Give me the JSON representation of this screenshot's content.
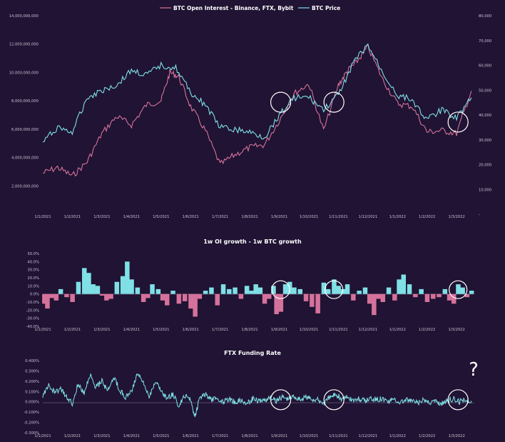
{
  "colors": {
    "background": "#201333",
    "oi": "#d5729b",
    "price": "#7fe0e6",
    "positive": "#7fe0e6",
    "negative": "#d5729b",
    "funding": "#7fe0e6",
    "circle": "#ffffff"
  },
  "annotation_mark": "?",
  "chart_data": [
    {
      "type": "line",
      "legend": [
        "BTC Open Interest - Binance, FTX, Bybit",
        "BTC Price"
      ],
      "legend_position": "top-center",
      "x_ticks": [
        "1/1/2021",
        "1/2/2021",
        "1/3/2021",
        "1/4/2021",
        "1/5/2021",
        "1/6/2021",
        "1/7/2021",
        "1/8/2021",
        "1/9/2021",
        "1/10/2021",
        "1/11/2021",
        "1/12/2021",
        "1/1/2022",
        "1/2/2022",
        "1/3/2022"
      ],
      "y_ticks": [
        "14,000,000,000",
        "12,000,000,000",
        "10,000,000,000",
        "8,000,000,000",
        "6,000,000,000",
        "4,000,000,000",
        "2,000,000,000"
      ],
      "y_tick_values": [
        14000000000,
        12000000000,
        10000000000,
        8000000000,
        6000000000,
        4000000000,
        2000000000
      ],
      "ylim": [
        0,
        14000000000
      ],
      "y2_ticks": [
        "80,000",
        "70,000",
        "60,000",
        "50,000",
        "40,000",
        "30,000",
        "20,000",
        "10,000",
        "-"
      ],
      "y2_tick_values": [
        80000,
        70000,
        60000,
        50000,
        40000,
        30000,
        20000,
        10000,
        0
      ],
      "y2lim": [
        0,
        80000
      ],
      "series": [
        {
          "name": "BTC Open Interest - Binance, FTX, Bybit",
          "axis": "left",
          "x": [
            0,
            0.5,
            1,
            1.5,
            2,
            2.5,
            3,
            3.5,
            4,
            4.3,
            4.6,
            5,
            5.5,
            6,
            6.5,
            7,
            7.5,
            8,
            8.5,
            9,
            9.5,
            10,
            10.3,
            10.6,
            11,
            11.5,
            12,
            12.5,
            13,
            13.5,
            14,
            14.5
          ],
          "values": [
            2900000000,
            3300000000,
            2700000000,
            3700000000,
            5700000000,
            6900000000,
            6300000000,
            7700000000,
            8000000000,
            10000000000,
            9700000000,
            7600000000,
            5900000000,
            3500000000,
            4200000000,
            4700000000,
            4900000000,
            6600000000,
            8500000000,
            9200000000,
            5900000000,
            9100000000,
            10100000000,
            10700000000,
            11800000000,
            9500000000,
            7800000000,
            7600000000,
            5800000000,
            5900000000,
            5700000000,
            8700000000
          ]
        },
        {
          "name": "BTC Price",
          "axis": "right",
          "x": [
            0,
            0.5,
            1,
            1.5,
            2,
            2.5,
            3,
            3.5,
            4,
            4.5,
            5,
            5.5,
            6,
            6.5,
            7,
            7.5,
            8,
            8.5,
            9,
            9.5,
            10,
            10.5,
            11,
            11.5,
            12,
            12.5,
            13,
            13.5,
            14,
            14.5
          ],
          "values": [
            29000,
            35000,
            33000,
            47000,
            50000,
            52000,
            58000,
            56000,
            60000,
            59000,
            49000,
            44000,
            35000,
            34000,
            33000,
            31000,
            40000,
            47000,
            47000,
            42000,
            48000,
            61000,
            68000,
            57000,
            48000,
            46000,
            38000,
            42000,
            39000,
            47000
          ]
        }
      ],
      "annotations": [
        {
          "type": "circle",
          "x": 8.05,
          "y": 8000000000
        },
        {
          "type": "circle",
          "x": 9.85,
          "y": 8000000000
        },
        {
          "type": "circle",
          "x": 14.05,
          "y": 6600000000
        }
      ]
    },
    {
      "type": "bar",
      "title": "1w OI growth - 1w BTC growth",
      "x_ticks": [
        "1/1/2021",
        "1/2/2021",
        "1/3/2021",
        "1/4/2021",
        "1/5/2021",
        "1/6/2021",
        "1/7/2021",
        "1/8/2021",
        "1/9/2021",
        "1/10/2021",
        "1/11/2021",
        "1/12/2021",
        "1/1/2022",
        "1/2/2022",
        "1/3/2022"
      ],
      "y_ticks": [
        "50.0%",
        "40.0%",
        "30.0%",
        "20.0%",
        "10.0%",
        "0.0%",
        "-10.0%",
        "-20.0%",
        "-30.0%",
        "-40.0%"
      ],
      "y_tick_values": [
        50,
        40,
        30,
        20,
        10,
        0,
        -10,
        -20,
        -30,
        -40
      ],
      "ylim": [
        -40,
        50
      ],
      "x": [
        0.05,
        0.15,
        0.3,
        0.45,
        0.6,
        0.8,
        1.0,
        1.2,
        1.4,
        1.55,
        1.7,
        1.85,
        2.0,
        2.15,
        2.3,
        2.5,
        2.7,
        2.85,
        3.0,
        3.2,
        3.4,
        3.55,
        3.7,
        3.9,
        4.05,
        4.2,
        4.4,
        4.6,
        4.8,
        5.0,
        5.15,
        5.3,
        5.5,
        5.7,
        5.9,
        6.1,
        6.3,
        6.5,
        6.7,
        6.9,
        7.05,
        7.2,
        7.35,
        7.5,
        7.65,
        7.8,
        7.9,
        8.05,
        8.2,
        8.35,
        8.5,
        8.7,
        8.9,
        9.1,
        9.3,
        9.5,
        9.65,
        9.85,
        10.0,
        10.15,
        10.3,
        10.5,
        10.7,
        10.9,
        11.05,
        11.2,
        11.35,
        11.5,
        11.7,
        11.9,
        12.05,
        12.2,
        12.4,
        12.6,
        12.8,
        13.0,
        13.2,
        13.4,
        13.6,
        13.75,
        13.9,
        14.05,
        14.2,
        14.35,
        14.5
      ],
      "values": [
        -12,
        -18,
        -5,
        -8,
        6,
        -4,
        -10,
        15,
        32,
        26,
        12,
        10,
        -2,
        -8,
        -6,
        15,
        22,
        40,
        18,
        8,
        -10,
        -5,
        12,
        6,
        -8,
        -14,
        4,
        -12,
        -9,
        -18,
        -28,
        -6,
        4,
        8,
        -14,
        12,
        6,
        8,
        -6,
        10,
        4,
        12,
        8,
        -12,
        -6,
        10,
        -25,
        -22,
        12,
        15,
        8,
        6,
        -9,
        -16,
        -24,
        14,
        6,
        18,
        10,
        6,
        12,
        -8,
        4,
        8,
        -12,
        -26,
        -6,
        -10,
        8,
        -8,
        18,
        24,
        12,
        -4,
        6,
        -10,
        -6,
        -4,
        6,
        -8,
        -12,
        12,
        8,
        -4,
        4
      ]
    },
    {
      "type": "line",
      "title": "FTX Funding Rate",
      "x_ticks": [
        "1/1/2021",
        "1/2/2021",
        "1/3/2021",
        "1/4/2021",
        "1/5/2021",
        "1/6/2021",
        "1/7/2021",
        "1/8/2021",
        "1/9/2021",
        "1/10/2021",
        "1/11/2021",
        "1/12/2021",
        "1/1/2022",
        "1/2/2022",
        "1/3/2022"
      ],
      "y_ticks": [
        "0.400%",
        "0.300%",
        "0.200%",
        "0.100%",
        "0.000%",
        "-0.100%",
        "-0.200%",
        "-0.300%"
      ],
      "y_tick_values": [
        0.4,
        0.3,
        0.2,
        0.1,
        0,
        -0.1,
        -0.2,
        -0.3
      ],
      "ylim": [
        -0.3,
        0.4
      ],
      "series": [
        {
          "x": [
            0,
            0.2,
            0.4,
            0.6,
            0.8,
            1.0,
            1.2,
            1.4,
            1.6,
            1.8,
            2.0,
            2.2,
            2.4,
            2.6,
            2.8,
            3.0,
            3.2,
            3.4,
            3.6,
            3.8,
            4.0,
            4.2,
            4.4,
            4.6,
            4.8,
            5.0,
            5.15,
            5.3,
            5.5,
            5.7,
            5.9,
            6.1,
            6.3,
            6.5,
            6.7,
            6.9,
            7.1,
            7.3,
            7.5,
            7.7,
            7.9,
            8.1,
            8.3,
            8.5,
            8.7,
            8.9,
            9.1,
            9.3,
            9.5,
            9.7,
            9.9,
            10.1,
            10.3,
            10.5,
            10.7,
            10.9,
            11.1,
            11.3,
            11.5,
            11.7,
            11.9,
            12.1,
            12.3,
            12.5,
            12.7,
            12.9,
            13.1,
            13.3,
            13.5,
            13.7,
            13.9,
            14.1,
            14.3,
            14.5
          ],
          "values": [
            0.05,
            0.16,
            0.09,
            0.12,
            0.06,
            -0.02,
            0.18,
            0.08,
            0.26,
            0.14,
            0.2,
            0.1,
            0.24,
            0.12,
            0.04,
            0.1,
            0.28,
            0.18,
            0.06,
            0.2,
            0.12,
            0.02,
            0.08,
            -0.04,
            0.06,
            0.03,
            -0.16,
            0.04,
            0.07,
            0.02,
            0.04,
            -0.01,
            0.03,
            0.0,
            0.02,
            -0.02,
            0.03,
            0.01,
            0.02,
            0.04,
            0.01,
            0.05,
            0.03,
            0.06,
            0.02,
            0.05,
            0.03,
            0.02,
            -0.01,
            0.04,
            0.08,
            0.03,
            0.05,
            0.02,
            0.03,
            0.01,
            0.04,
            0.02,
            0.03,
            0.01,
            0.02,
            0.0,
            0.02,
            0.01,
            -0.01,
            0.02,
            0.0,
            0.01,
            -0.02,
            0.01,
            0.03,
            0.0,
            0.02,
            0.01
          ]
        }
      ],
      "annotations": [
        {
          "type": "circle",
          "x": 8.05,
          "y": 0.02
        },
        {
          "type": "circle",
          "x": 9.85,
          "y": 0.02
        },
        {
          "type": "circle",
          "x": 14.05,
          "y": 0.02
        }
      ]
    }
  ]
}
